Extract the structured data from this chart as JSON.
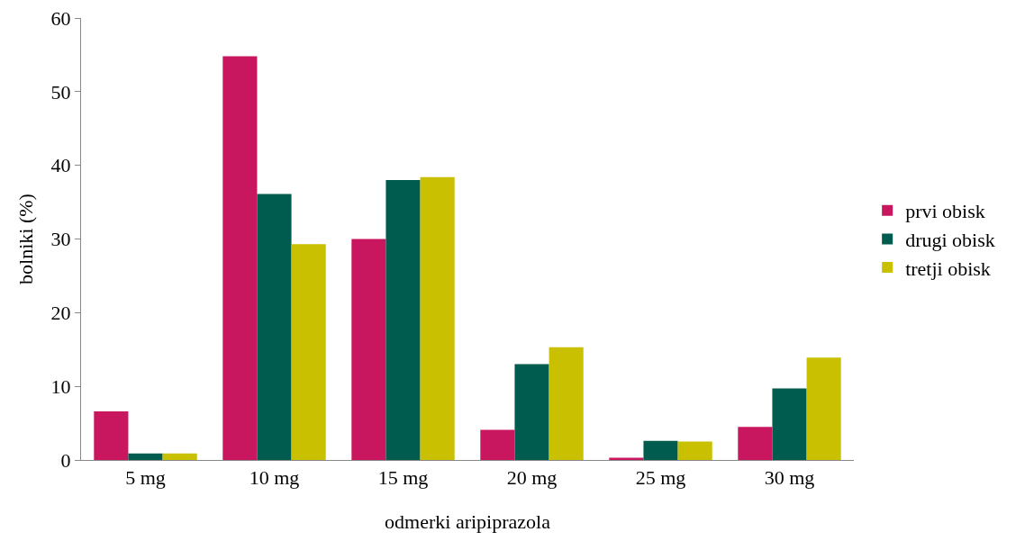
{
  "chart_data": {
    "type": "bar",
    "xlabel": "odmerki aripiprazola",
    "ylabel": "bolniki (%)",
    "categories": [
      "5 mg",
      "10 mg",
      "15 mg",
      "20 mg",
      "25 mg",
      "30 mg"
    ],
    "series": [
      {
        "name": "prvi obisk",
        "color": "#c8175e",
        "values": [
          6.6,
          54.8,
          30.0,
          4.1,
          0.3,
          4.5
        ]
      },
      {
        "name": "drugi obisk",
        "color": "#005c4e",
        "values": [
          0.9,
          36.1,
          38.0,
          13.0,
          2.6,
          9.7
        ]
      },
      {
        "name": "tretji obisk",
        "color": "#c8c000",
        "values": [
          0.9,
          29.3,
          38.4,
          15.3,
          2.5,
          13.9
        ]
      }
    ],
    "ylim": [
      0,
      60
    ],
    "yticks": [
      0,
      10,
      20,
      30,
      40,
      50,
      60
    ],
    "grid": false,
    "legend": "right"
  }
}
